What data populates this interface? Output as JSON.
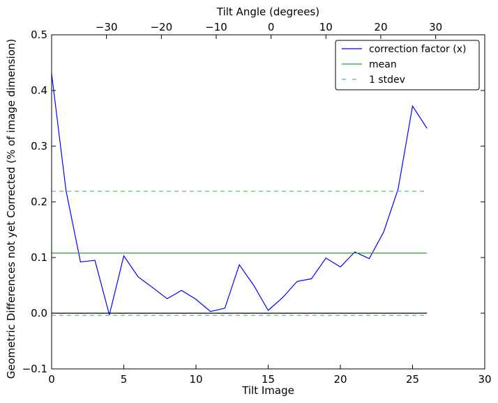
{
  "chart_data": {
    "type": "line",
    "title": "",
    "xlabel": "Tilt Image",
    "ylabel": "Geometric Differences not yet Corrected (% of image dimension)",
    "top_xlabel": "Tilt Angle (degrees)",
    "xlim": [
      0,
      30
    ],
    "ylim": [
      -0.1,
      0.5
    ],
    "x_ticks": [
      0,
      5,
      10,
      15,
      20,
      25,
      30
    ],
    "y_ticks": [
      -0.1,
      0.0,
      0.1,
      0.2,
      0.3,
      0.4,
      0.5
    ],
    "y_tick_labels": [
      "−0.1",
      "0.0",
      "0.1",
      "0.2",
      "0.3",
      "0.4",
      "0.5"
    ],
    "top_ticks": [
      {
        "x": 3.8,
        "label": "−30"
      },
      {
        "x": 7.6,
        "label": "−20"
      },
      {
        "x": 11.4,
        "label": "−10"
      },
      {
        "x": 15.2,
        "label": "0"
      },
      {
        "x": 19.0,
        "label": "10"
      },
      {
        "x": 22.8,
        "label": "20"
      },
      {
        "x": 26.6,
        "label": "30"
      }
    ],
    "grid": false,
    "legend_position": "top-right",
    "series": [
      {
        "name": "correction factor (x)",
        "color": "#0000ff",
        "style": "solid",
        "x": [
          0,
          1,
          2,
          3,
          4,
          5,
          6,
          7,
          8,
          9,
          10,
          11,
          12,
          13,
          14,
          15,
          16,
          17,
          18,
          19,
          20,
          21,
          22,
          23,
          24,
          25,
          26
        ],
        "y": [
          0.43,
          0.22,
          0.092,
          0.095,
          -0.003,
          0.103,
          0.065,
          0.046,
          0.026,
          0.041,
          0.025,
          0.003,
          0.009,
          0.087,
          0.05,
          0.005,
          0.028,
          0.057,
          0.062,
          0.099,
          0.083,
          0.11,
          0.098,
          0.146,
          0.223,
          0.372,
          0.332
        ]
      },
      {
        "name": "mean",
        "color": "#2ca02c",
        "style": "solid",
        "x": [
          0,
          26
        ],
        "y": [
          0.108,
          0.108
        ]
      },
      {
        "name": "1 stdev",
        "color": "#5cb85c",
        "style": "dashed",
        "x": [
          0,
          26
        ],
        "y": [
          0.219,
          0.219
        ]
      },
      {
        "name": "",
        "color": "#5cb85c",
        "style": "dashed",
        "x": [
          0,
          26
        ],
        "y": [
          -0.004,
          -0.004
        ]
      },
      {
        "name": "",
        "color": "#000000",
        "style": "solid",
        "x": [
          0,
          26
        ],
        "y": [
          0,
          0
        ]
      }
    ],
    "legend": [
      {
        "label": "correction factor (x)",
        "color": "#0000ff",
        "style": "solid"
      },
      {
        "label": "mean",
        "color": "#2ca02c",
        "style": "solid"
      },
      {
        "label": "1 stdev",
        "color": "#5cb85c",
        "style": "dashed"
      }
    ]
  }
}
